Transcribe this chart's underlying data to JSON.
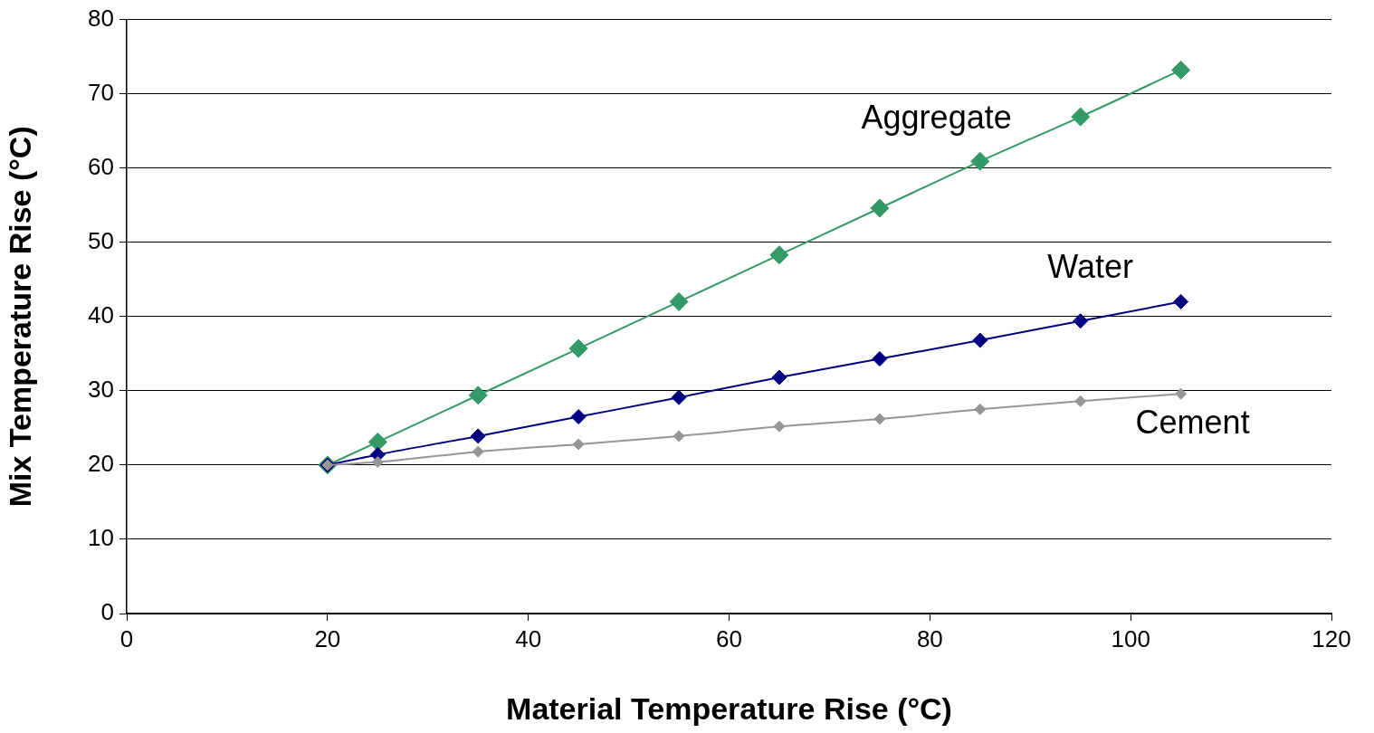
{
  "chart_data": {
    "type": "line",
    "xlabel": "Material Temperature Rise (°C)",
    "ylabel": "Mix Temperature Rise (°C)",
    "x": [
      20,
      25,
      35,
      45,
      55,
      65,
      75,
      85,
      95,
      105
    ],
    "series": [
      {
        "name": "Aggregate",
        "color": "#339966",
        "values": [
          20,
          23.1,
          29.4,
          35.7,
          42.0,
          48.3,
          54.6,
          60.9,
          66.9,
          73.2
        ]
      },
      {
        "name": "Water",
        "color": "#000080",
        "values": [
          20,
          21.4,
          23.9,
          26.5,
          29.1,
          31.8,
          34.3,
          36.8,
          39.4,
          42.0
        ]
      },
      {
        "name": "Cement",
        "color": "#969696",
        "values": [
          20,
          20.4,
          21.8,
          22.8,
          23.9,
          25.2,
          26.2,
          27.5,
          28.6,
          29.6
        ]
      }
    ],
    "xlim": [
      0,
      120
    ],
    "xticks": [
      0,
      20,
      40,
      60,
      80,
      100,
      120
    ],
    "ylim": [
      0,
      80
    ],
    "yticks": [
      0,
      10,
      20,
      30,
      40,
      50,
      60,
      70,
      80
    ],
    "grid": "y",
    "legend": false,
    "marker": "diamond",
    "line_style": "solid"
  }
}
